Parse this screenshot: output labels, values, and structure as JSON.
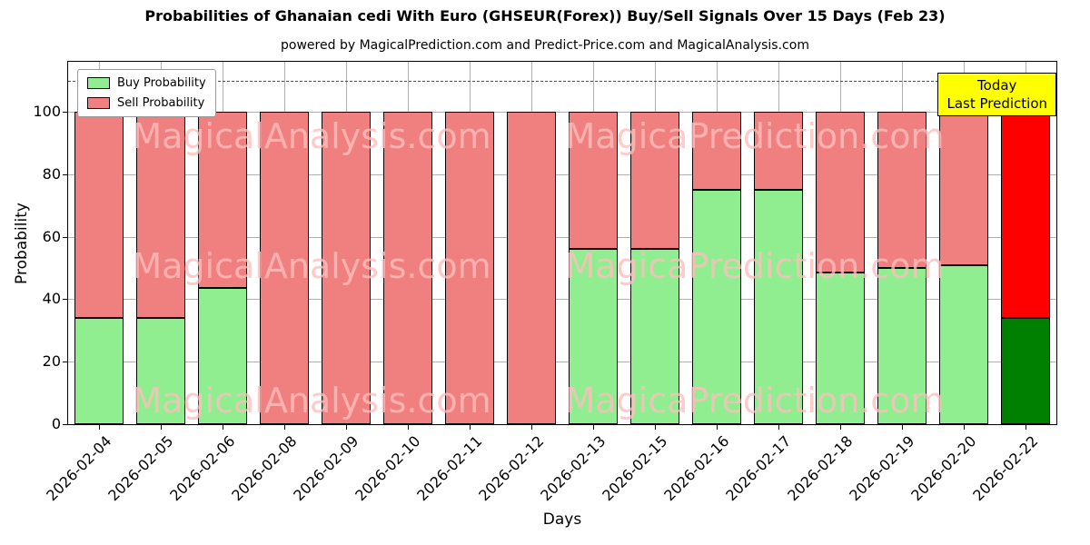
{
  "title": "Probabilities of Ghanaian cedi With Euro (GHSEUR(Forex)) Buy/Sell Signals Over 15 Days (Feb 23)",
  "subtitle": "powered by MagicalPrediction.com and Predict-Price.com and MagicalAnalysis.com",
  "xlabel": "Days",
  "ylabel": "Probability",
  "legend": {
    "buy": "Buy Probability",
    "sell": "Sell Probability"
  },
  "annotation": {
    "line1": "Today",
    "line2": "Last Prediction"
  },
  "watermarks": {
    "left": "MagicalAnalysis.com",
    "right": "MagicaPrediction.com"
  },
  "colors": {
    "buy": "#90EE90",
    "sell": "#F08080",
    "today_buy": "#008000",
    "today_sell": "#FF0000",
    "grid": "#b0b0b0",
    "annotation_bg": "#FFFF00",
    "watermark": "#ffbebe"
  },
  "chart_data": {
    "type": "bar",
    "stacked": true,
    "title": "Probabilities of Ghanaian cedi With Euro (GHSEUR(Forex)) Buy/Sell Signals Over 15 Days (Feb 23)",
    "xlabel": "Days",
    "ylabel": "Probability",
    "categories": [
      "2026-02-04",
      "2026-02-05",
      "2026-02-06",
      "2026-02-08",
      "2026-02-09",
      "2026-02-10",
      "2026-02-11",
      "2026-02-12",
      "2026-02-13",
      "2026-02-15",
      "2026-02-16",
      "2026-02-17",
      "2026-02-18",
      "2026-02-19",
      "2026-02-20",
      "2026-02-22"
    ],
    "series": [
      {
        "name": "Buy Probability",
        "values": [
          34,
          34,
          43.5,
          0,
          0,
          0,
          0,
          0,
          56,
          56,
          75,
          75,
          48.5,
          50,
          51,
          34
        ]
      },
      {
        "name": "Sell Probability",
        "values": [
          66,
          66,
          56.5,
          100,
          100,
          100,
          100,
          100,
          44,
          44,
          25,
          25,
          51.5,
          50,
          49,
          66
        ]
      }
    ],
    "today_index": 15,
    "yticks": [
      0,
      20,
      40,
      60,
      80,
      100
    ],
    "ylim": [
      0,
      116
    ],
    "dashed_line_y": 110,
    "grid": true,
    "legend_position": "upper left"
  }
}
